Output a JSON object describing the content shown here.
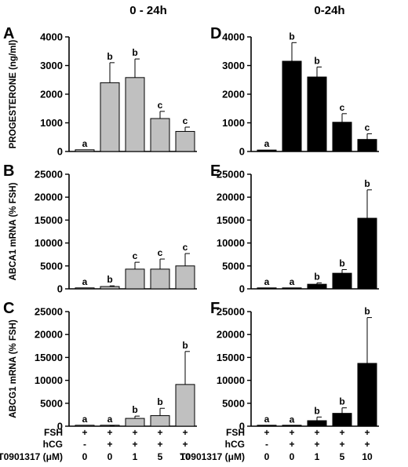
{
  "columns": [
    {
      "title": "0 - 24h",
      "bar_color": "#c0c0c0"
    },
    {
      "title": "0-24h",
      "bar_color": "#000000"
    }
  ],
  "treatments": {
    "rows": [
      {
        "label": "FSH",
        "values": [
          "+",
          "+",
          "+",
          "+",
          "+"
        ]
      },
      {
        "label": "hCG",
        "values": [
          "-",
          "+",
          "+",
          "+",
          "+"
        ]
      },
      {
        "label": "T0901317 (μM)",
        "values": [
          "0",
          "0",
          "1",
          "5",
          "10"
        ]
      }
    ]
  },
  "chart_data": [
    {
      "panel": "A",
      "type": "bar",
      "ylabel": "PROGESTERONE (ng/ml)",
      "ylim": [
        0,
        4000
      ],
      "yticks": [
        0,
        1000,
        2000,
        3000,
        4000
      ],
      "values": [
        60,
        2400,
        2580,
        1150,
        700
      ],
      "errors": [
        0,
        700,
        650,
        250,
        150
      ],
      "letters": [
        "a",
        "b",
        "b",
        "c",
        "c"
      ]
    },
    {
      "panel": "D",
      "type": "bar",
      "ylabel": "",
      "ylim": [
        0,
        4000
      ],
      "yticks": [
        0,
        1000,
        2000,
        3000,
        4000
      ],
      "values": [
        50,
        3150,
        2600,
        1020,
        420
      ],
      "errors": [
        0,
        650,
        350,
        300,
        200
      ],
      "letters": [
        "a",
        "b",
        "b",
        "c",
        "c"
      ]
    },
    {
      "panel": "B",
      "type": "bar",
      "ylabel": "ABCA1 mRNA (% FSH)",
      "ylim": [
        0,
        25000
      ],
      "yticks": [
        0,
        5000,
        10000,
        15000,
        20000,
        25000
      ],
      "values": [
        0,
        500,
        4300,
        4300,
        5000
      ],
      "errors": [
        0,
        150,
        1500,
        2200,
        2700
      ],
      "letters": [
        "a",
        "b",
        "c",
        "c",
        "c"
      ]
    },
    {
      "panel": "E",
      "type": "bar",
      "ylabel": "",
      "ylim": [
        0,
        25000
      ],
      "yticks": [
        0,
        5000,
        10000,
        15000,
        20000,
        25000
      ],
      "values": [
        0,
        100,
        1000,
        3400,
        15400
      ],
      "errors": [
        0,
        50,
        300,
        800,
        6200
      ],
      "letters": [
        "a",
        "a",
        "b",
        "b",
        "b"
      ]
    },
    {
      "panel": "C",
      "type": "bar",
      "ylabel": "ABCG1 mRNA (% FSH)",
      "ylim": [
        0,
        25000
      ],
      "yticks": [
        0,
        5000,
        10000,
        15000,
        20000,
        25000
      ],
      "values": [
        0,
        100,
        1700,
        2300,
        9100
      ],
      "errors": [
        0,
        50,
        500,
        1600,
        7200
      ],
      "letters": [
        "a",
        "a",
        "b",
        "b",
        "b"
      ]
    },
    {
      "panel": "F",
      "type": "bar",
      "ylabel": "",
      "ylim": [
        0,
        25000
      ],
      "yticks": [
        0,
        5000,
        10000,
        15000,
        20000,
        25000
      ],
      "values": [
        0,
        50,
        1200,
        2800,
        13700
      ],
      "errors": [
        0,
        30,
        800,
        1200,
        10000
      ],
      "letters": [
        "a",
        "a",
        "b",
        "b",
        "b"
      ]
    }
  ]
}
